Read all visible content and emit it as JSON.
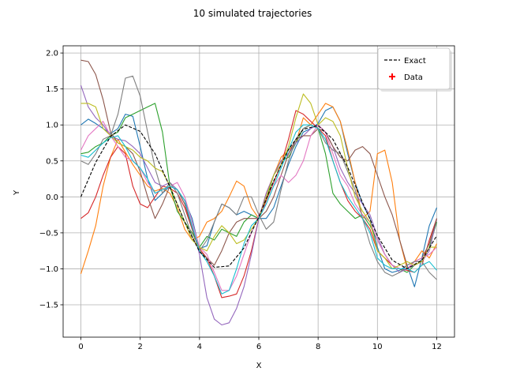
{
  "chart_data": {
    "type": "line",
    "title": "10 simulated trajectories",
    "xlabel": "X",
    "ylabel": "Y",
    "xlim": [
      -0.6,
      12.6
    ],
    "ylim": [
      -1.95,
      2.1
    ],
    "xticks": [
      0,
      2,
      4,
      6,
      8,
      10,
      12
    ],
    "xtick_labels": [
      "0",
      "2",
      "4",
      "6",
      "8",
      "10",
      "12"
    ],
    "yticks": [
      -1.5,
      -1.0,
      -0.5,
      0.0,
      0.5,
      1.0,
      1.5,
      2.0
    ],
    "ytick_labels": [
      "−1.5",
      "−1.0",
      "−0.5",
      "0.0",
      "0.5",
      "1.0",
      "1.5",
      "2.0"
    ],
    "grid": true,
    "legend_position": "top-right",
    "legend": [
      {
        "label": "Exact",
        "style": "dashed-line",
        "color": "#000000"
      },
      {
        "label": "Data",
        "style": "plus-marker",
        "color": "#ff0000"
      }
    ],
    "exact": {
      "name": "Exact",
      "color": "#000000",
      "x": [
        0,
        0.5,
        1,
        1.5,
        2,
        2.5,
        3,
        3.5,
        4,
        4.5,
        5,
        5.5,
        6,
        6.5,
        7,
        7.5,
        8,
        8.5,
        9,
        9.5,
        10,
        10.5,
        11,
        11.5,
        12
      ],
      "y": [
        0.0,
        0.48,
        0.84,
        1.0,
        0.91,
        0.6,
        0.14,
        -0.35,
        -0.76,
        -0.98,
        -0.96,
        -0.71,
        -0.28,
        0.22,
        0.66,
        0.94,
        0.99,
        0.8,
        0.41,
        -0.08,
        -0.54,
        -0.88,
        -1.0,
        -0.88,
        -0.54
      ]
    },
    "series": [
      {
        "color": "#1f77b4",
        "x": [
          0,
          0.25,
          0.5,
          0.75,
          1,
          1.25,
          1.5,
          1.75,
          2,
          2.25,
          2.5,
          2.75,
          3,
          3.25,
          3.5,
          3.75,
          4,
          4.25,
          4.5,
          4.75,
          5,
          5.25,
          5.5,
          5.75,
          6,
          6.25,
          6.5,
          6.75,
          7,
          7.25,
          7.5,
          7.75,
          8,
          8.25,
          8.5,
          8.75,
          9,
          9.25,
          9.5,
          9.75,
          10,
          10.25,
          10.5,
          10.75,
          11,
          11.25,
          11.5,
          11.75,
          12
        ],
        "y": [
          1.0,
          1.08,
          1.02,
          0.95,
          0.88,
          0.95,
          1.15,
          1.12,
          0.7,
          0.25,
          -0.05,
          0.05,
          0.15,
          0.1,
          -0.05,
          -0.3,
          -0.72,
          -0.68,
          -0.35,
          -0.1,
          -0.15,
          -0.25,
          -0.2,
          -0.25,
          -0.3,
          -0.3,
          -0.15,
          0.15,
          0.45,
          0.7,
          0.9,
          0.95,
          1.02,
          1.2,
          1.25,
          1.05,
          0.6,
          0.2,
          -0.1,
          -0.3,
          -0.7,
          -1.0,
          -1.05,
          -1.02,
          -0.95,
          -1.25,
          -0.85,
          -0.4,
          -0.15
        ]
      },
      {
        "color": "#ff7f0e",
        "x": [
          0,
          0.25,
          0.5,
          0.75,
          1,
          1.25,
          1.5,
          1.75,
          2,
          2.25,
          2.5,
          2.75,
          3,
          3.25,
          3.5,
          3.75,
          4,
          4.25,
          4.5,
          4.75,
          5,
          5.25,
          5.5,
          5.75,
          6,
          6.25,
          6.5,
          6.75,
          7,
          7.25,
          7.5,
          7.75,
          8,
          8.25,
          8.5,
          8.75,
          9,
          9.25,
          9.5,
          9.75,
          10,
          10.25,
          10.5,
          10.75,
          11,
          11.25,
          11.5,
          11.75,
          12
        ],
        "y": [
          -1.07,
          -0.75,
          -0.4,
          0.15,
          0.55,
          0.8,
          0.62,
          0.45,
          0.3,
          0.15,
          0.08,
          0.12,
          0.05,
          -0.15,
          -0.45,
          -0.6,
          -0.55,
          -0.35,
          -0.3,
          -0.2,
          0.0,
          0.22,
          0.15,
          -0.15,
          -0.3,
          0.05,
          0.3,
          0.55,
          0.65,
          0.75,
          1.1,
          1.0,
          1.15,
          1.3,
          1.25,
          1.05,
          0.65,
          0.2,
          -0.3,
          -0.2,
          0.6,
          0.65,
          0.2,
          -0.6,
          -1.0,
          -0.9,
          -0.75,
          -0.85,
          -0.65
        ]
      },
      {
        "color": "#2ca02c",
        "x": [
          0,
          0.25,
          0.5,
          0.75,
          1,
          1.25,
          1.5,
          1.75,
          2,
          2.25,
          2.5,
          2.75,
          3,
          3.25,
          3.5,
          3.75,
          4,
          4.25,
          4.5,
          4.75,
          5,
          5.25,
          5.5,
          5.75,
          6,
          6.25,
          6.5,
          6.75,
          7,
          7.25,
          7.5,
          7.75,
          8,
          8.25,
          8.5,
          8.75,
          9,
          9.25,
          9.5,
          9.75,
          10,
          10.25,
          10.5,
          10.75,
          11,
          11.25,
          11.5,
          11.75,
          12
        ],
        "y": [
          0.6,
          0.62,
          0.7,
          0.75,
          0.85,
          0.9,
          1.1,
          1.15,
          1.2,
          1.25,
          1.3,
          0.9,
          0.15,
          -0.2,
          -0.35,
          -0.5,
          -0.7,
          -0.55,
          -0.6,
          -0.45,
          -0.5,
          -0.55,
          -0.35,
          -0.25,
          -0.3,
          -0.05,
          0.3,
          0.5,
          0.55,
          0.75,
          0.95,
          1.0,
          0.95,
          0.6,
          0.05,
          -0.1,
          -0.2,
          -0.3,
          -0.25,
          -0.4,
          -0.6,
          -0.8,
          -0.95,
          -1.0,
          -1.05,
          -0.95,
          -0.9,
          -0.7,
          -0.35
        ]
      },
      {
        "color": "#d62728",
        "x": [
          0,
          0.25,
          0.5,
          0.75,
          1,
          1.25,
          1.5,
          1.75,
          2,
          2.25,
          2.5,
          2.75,
          3,
          3.25,
          3.5,
          3.75,
          4,
          4.25,
          4.5,
          4.75,
          5,
          5.25,
          5.5,
          5.75,
          6,
          6.25,
          6.5,
          6.75,
          7,
          7.25,
          7.5,
          7.75,
          8,
          8.25,
          8.5,
          8.75,
          9,
          9.25,
          9.5,
          9.75,
          10,
          10.25,
          10.5,
          10.75,
          11,
          11.25,
          11.5,
          11.75,
          12
        ],
        "y": [
          -0.3,
          -0.22,
          0.0,
          0.3,
          0.55,
          0.7,
          0.6,
          0.15,
          -0.1,
          -0.15,
          0.0,
          0.15,
          0.12,
          0.05,
          -0.15,
          -0.45,
          -0.72,
          -0.85,
          -1.1,
          -1.4,
          -1.38,
          -1.35,
          -1.1,
          -0.75,
          -0.3,
          -0.05,
          0.2,
          0.45,
          0.8,
          1.2,
          1.15,
          1.05,
          0.95,
          0.85,
          0.5,
          0.2,
          -0.05,
          -0.2,
          -0.3,
          -0.45,
          -0.75,
          -0.85,
          -0.95,
          -1.0,
          -1.02,
          -1.05,
          -0.95,
          -0.6,
          -0.3
        ]
      },
      {
        "color": "#9467bd",
        "x": [
          0,
          0.25,
          0.5,
          0.75,
          1,
          1.25,
          1.5,
          1.75,
          2,
          2.25,
          2.5,
          2.75,
          3,
          3.25,
          3.5,
          3.75,
          4,
          4.25,
          4.5,
          4.75,
          5,
          5.25,
          5.5,
          5.75,
          6,
          6.25,
          6.5,
          6.75,
          7,
          7.25,
          7.5,
          7.75,
          8,
          8.25,
          8.5,
          8.75,
          9,
          9.25,
          9.5,
          9.75,
          10,
          10.25,
          10.5,
          10.75,
          11,
          11.25,
          11.5,
          11.75,
          12
        ],
        "y": [
          1.55,
          1.25,
          1.1,
          1.0,
          0.85,
          0.8,
          0.78,
          0.7,
          0.6,
          0.4,
          0.2,
          0.15,
          0.2,
          0.1,
          -0.1,
          -0.4,
          -0.8,
          -1.4,
          -1.7,
          -1.78,
          -1.75,
          -1.55,
          -1.25,
          -0.8,
          -0.3,
          0.05,
          0.3,
          0.5,
          0.6,
          0.75,
          0.85,
          0.95,
          1.0,
          0.9,
          0.7,
          0.4,
          0.2,
          0.05,
          -0.1,
          -0.25,
          -0.55,
          -0.8,
          -0.95,
          -1.05,
          -1.0,
          -0.95,
          -0.9,
          -0.75,
          -0.3
        ]
      },
      {
        "color": "#8c564b",
        "x": [
          0,
          0.25,
          0.5,
          0.75,
          1,
          1.25,
          1.5,
          1.75,
          2,
          2.25,
          2.5,
          2.75,
          3,
          3.25,
          3.5,
          3.75,
          4,
          4.25,
          4.5,
          4.75,
          5,
          5.25,
          5.5,
          5.75,
          6,
          6.25,
          6.5,
          6.75,
          7,
          7.25,
          7.5,
          7.75,
          8,
          8.25,
          8.5,
          8.75,
          9,
          9.25,
          9.5,
          9.75,
          10,
          10.25,
          10.5,
          10.75,
          11,
          11.25,
          11.5,
          11.75,
          12
        ],
        "y": [
          1.9,
          1.88,
          1.7,
          1.35,
          0.9,
          0.75,
          0.7,
          0.6,
          0.35,
          0.0,
          -0.3,
          -0.1,
          0.15,
          0.1,
          -0.1,
          -0.45,
          -0.75,
          -0.85,
          -0.95,
          -0.75,
          -0.5,
          -0.35,
          -0.3,
          -0.3,
          -0.3,
          -0.2,
          0.0,
          0.3,
          0.6,
          0.8,
          0.85,
          0.85,
          0.95,
          0.9,
          0.7,
          0.55,
          0.5,
          0.65,
          0.7,
          0.6,
          0.3,
          0.0,
          -0.25,
          -0.6,
          -0.95,
          -0.9,
          -0.85,
          -0.65,
          -0.3
        ]
      },
      {
        "color": "#e377c2",
        "x": [
          0,
          0.25,
          0.5,
          0.75,
          1,
          1.25,
          1.5,
          1.75,
          2,
          2.25,
          2.5,
          2.75,
          3,
          3.25,
          3.5,
          3.75,
          4,
          4.25,
          4.5,
          4.75,
          5,
          5.25,
          5.5,
          5.75,
          6,
          6.25,
          6.5,
          6.75,
          7,
          7.25,
          7.5,
          7.75,
          8,
          8.25,
          8.5,
          8.75,
          9,
          9.25,
          9.5,
          9.75,
          10,
          10.25,
          10.5,
          10.75,
          11,
          11.25,
          11.5,
          11.75,
          12
        ],
        "y": [
          0.65,
          0.85,
          0.95,
          1.05,
          0.85,
          0.7,
          0.55,
          0.5,
          0.4,
          0.2,
          0.05,
          0.1,
          0.15,
          0.2,
          0.0,
          -0.35,
          -0.7,
          -0.8,
          -1.05,
          -1.3,
          -1.3,
          -1.1,
          -0.8,
          -0.5,
          -0.25,
          -0.1,
          0.15,
          0.3,
          0.2,
          0.3,
          0.5,
          0.85,
          1.0,
          0.9,
          0.6,
          0.3,
          0.15,
          -0.1,
          -0.25,
          -0.35,
          -0.6,
          -0.8,
          -0.95,
          -1.0,
          -1.0,
          -0.9,
          -0.85,
          -0.8,
          -0.7
        ]
      },
      {
        "color": "#7f7f7f",
        "x": [
          0,
          0.25,
          0.5,
          0.75,
          1,
          1.25,
          1.5,
          1.75,
          2,
          2.25,
          2.5,
          2.75,
          3,
          3.25,
          3.5,
          3.75,
          4,
          4.25,
          4.5,
          4.75,
          5,
          5.25,
          5.5,
          5.75,
          6,
          6.25,
          6.5,
          6.75,
          7,
          7.25,
          7.5,
          7.75,
          8,
          8.25,
          8.5,
          8.75,
          9,
          9.25,
          9.5,
          9.75,
          10,
          10.25,
          10.5,
          10.75,
          11,
          11.25,
          11.5,
          11.75,
          12
        ],
        "y": [
          0.5,
          0.45,
          0.6,
          0.8,
          0.85,
          1.15,
          1.65,
          1.68,
          1.4,
          0.9,
          0.4,
          0.05,
          0.2,
          0.05,
          -0.25,
          -0.55,
          -0.75,
          -0.6,
          -0.35,
          -0.1,
          -0.15,
          -0.25,
          0.0,
          0.0,
          -0.25,
          -0.45,
          -0.35,
          0.1,
          0.5,
          0.8,
          0.95,
          1.0,
          0.95,
          0.75,
          0.65,
          0.6,
          0.35,
          0.1,
          -0.3,
          -0.65,
          -0.9,
          -1.05,
          -1.1,
          -1.05,
          -0.95,
          -0.9,
          -0.9,
          -1.05,
          -1.15
        ]
      },
      {
        "color": "#bcbd22",
        "x": [
          0,
          0.25,
          0.5,
          0.75,
          1,
          1.25,
          1.5,
          1.75,
          2,
          2.25,
          2.5,
          2.75,
          3,
          3.25,
          3.5,
          3.75,
          4,
          4.25,
          4.5,
          4.75,
          5,
          5.25,
          5.5,
          5.75,
          6,
          6.25,
          6.5,
          6.75,
          7,
          7.25,
          7.5,
          7.75,
          8,
          8.25,
          8.5,
          8.75,
          9,
          9.25,
          9.5,
          9.75,
          10,
          10.25,
          10.5,
          10.75,
          11,
          11.25,
          11.5,
          11.75,
          12
        ],
        "y": [
          1.3,
          1.3,
          1.25,
          0.95,
          0.85,
          0.75,
          0.7,
          0.65,
          0.55,
          0.5,
          0.4,
          0.35,
          0.15,
          -0.1,
          -0.35,
          -0.6,
          -0.7,
          -0.75,
          -0.55,
          -0.4,
          -0.5,
          -0.65,
          -0.6,
          -0.45,
          -0.3,
          0.0,
          0.3,
          0.45,
          0.7,
          1.1,
          1.43,
          1.3,
          1.0,
          1.1,
          1.05,
          0.85,
          0.4,
          0.0,
          -0.2,
          -0.35,
          -0.75,
          -0.85,
          -1.0,
          -0.95,
          -0.9,
          -0.95,
          -0.9,
          -0.7,
          -0.7
        ]
      },
      {
        "color": "#17becf",
        "x": [
          0,
          0.25,
          0.5,
          0.75,
          1,
          1.25,
          1.5,
          1.75,
          2,
          2.25,
          2.5,
          2.75,
          3,
          3.25,
          3.5,
          3.75,
          4,
          4.25,
          4.5,
          4.75,
          5,
          5.25,
          5.5,
          5.75,
          6,
          6.25,
          6.5,
          6.75,
          7,
          7.25,
          7.5,
          7.75,
          8,
          8.25,
          8.5,
          8.75,
          9,
          9.25,
          9.5,
          9.75,
          10,
          10.25,
          10.5,
          10.75,
          11,
          11.25,
          11.5,
          11.75,
          12
        ],
        "y": [
          0.58,
          0.55,
          0.65,
          0.75,
          0.82,
          0.85,
          0.7,
          0.5,
          0.4,
          0.25,
          0.05,
          0.1,
          0.15,
          0.1,
          -0.05,
          -0.4,
          -0.75,
          -0.9,
          -1.1,
          -1.35,
          -1.3,
          -1.0,
          -0.65,
          -0.4,
          -0.3,
          -0.1,
          0.15,
          0.4,
          0.65,
          0.9,
          1.0,
          1.0,
          0.95,
          0.8,
          0.5,
          0.2,
          0.0,
          -0.15,
          -0.3,
          -0.5,
          -0.85,
          -0.95,
          -1.0,
          -1.0,
          -1.0,
          -1.05,
          -0.95,
          -0.9,
          -1.02
        ]
      }
    ]
  }
}
